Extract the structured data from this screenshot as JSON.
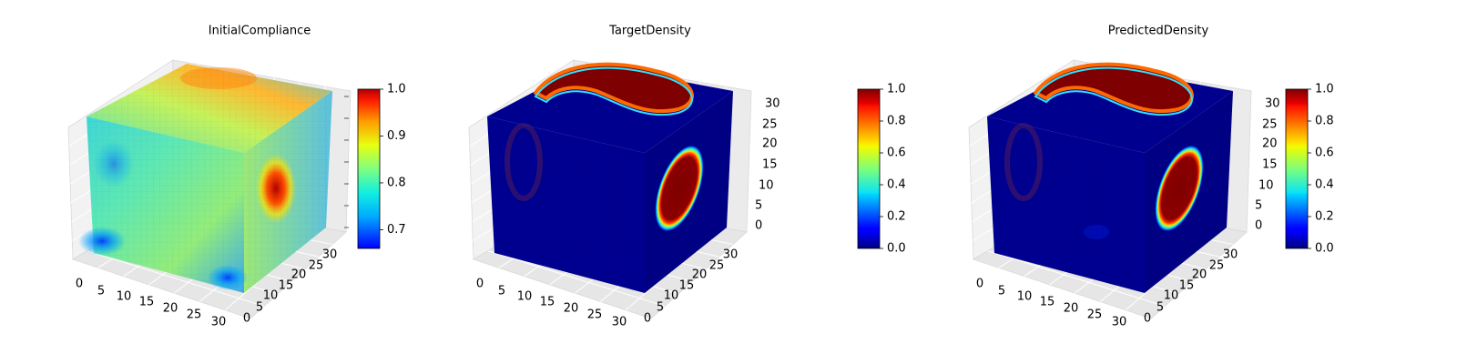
{
  "figure": {
    "panels": [
      {
        "title": "InitialCompliance",
        "colormap": "jet",
        "colorbar": {
          "vmin": 0.66,
          "vmax": 1.0,
          "ticks": [
            "1.0",
            "0.9",
            "0.8",
            "0.7"
          ],
          "tick_values": [
            1.0,
            0.9,
            0.8,
            0.7
          ]
        }
      },
      {
        "title": "TargetDensity",
        "colormap": "jet",
        "colorbar": {
          "vmin": 0.0,
          "vmax": 1.0,
          "ticks": [
            "1.0",
            "0.8",
            "0.6",
            "0.4",
            "0.2",
            "0.0"
          ],
          "tick_values": [
            1.0,
            0.8,
            0.6,
            0.4,
            0.2,
            0.0
          ]
        }
      },
      {
        "title": "PredictedDensity",
        "colormap": "jet",
        "colorbar": {
          "vmin": 0.0,
          "vmax": 1.0,
          "ticks": [
            "1.0",
            "0.8",
            "0.6",
            "0.4",
            "0.2",
            "0.0"
          ],
          "tick_values": [
            1.0,
            0.8,
            0.6,
            0.4,
            0.2,
            0.0
          ]
        }
      }
    ]
  },
  "chart_data": [
    {
      "type": "heatmap",
      "title": "InitialCompliance",
      "xlabel": "",
      "ylabel": "",
      "zlabel": "",
      "x_ticks": [
        "0",
        "5",
        "10",
        "15",
        "20",
        "25",
        "30"
      ],
      "y_ticks": [
        "0",
        "5",
        "10",
        "15",
        "20",
        "25",
        "30"
      ],
      "z_ticks": [],
      "xlim": [
        0,
        32
      ],
      "ylim": [
        0,
        32
      ],
      "zlim": [
        0,
        32
      ],
      "value_range": [
        0.66,
        1.0
      ],
      "grid": true
    },
    {
      "type": "heatmap",
      "title": "TargetDensity",
      "xlabel": "",
      "ylabel": "",
      "zlabel": "",
      "x_ticks": [
        "0",
        "5",
        "10",
        "15",
        "20",
        "25",
        "30"
      ],
      "y_ticks": [
        "0",
        "5",
        "10",
        "15",
        "20",
        "25",
        "30"
      ],
      "z_ticks": [
        "0",
        "5",
        "10",
        "15",
        "20",
        "25",
        "30"
      ],
      "xlim": [
        0,
        32
      ],
      "ylim": [
        0,
        32
      ],
      "zlim": [
        0,
        32
      ],
      "value_range": [
        0.0,
        1.0
      ],
      "grid": true
    },
    {
      "type": "heatmap",
      "title": "PredictedDensity",
      "xlabel": "",
      "ylabel": "",
      "zlabel": "",
      "x_ticks": [
        "0",
        "5",
        "10",
        "15",
        "20",
        "25",
        "30"
      ],
      "y_ticks": [
        "0",
        "5",
        "10",
        "15",
        "20",
        "25",
        "30"
      ],
      "z_ticks": [
        "0",
        "5",
        "10",
        "15",
        "20",
        "25",
        "30"
      ],
      "xlim": [
        0,
        32
      ],
      "ylim": [
        0,
        32
      ],
      "zlim": [
        0,
        32
      ],
      "value_range": [
        0.0,
        1.0
      ],
      "grid": true
    }
  ]
}
